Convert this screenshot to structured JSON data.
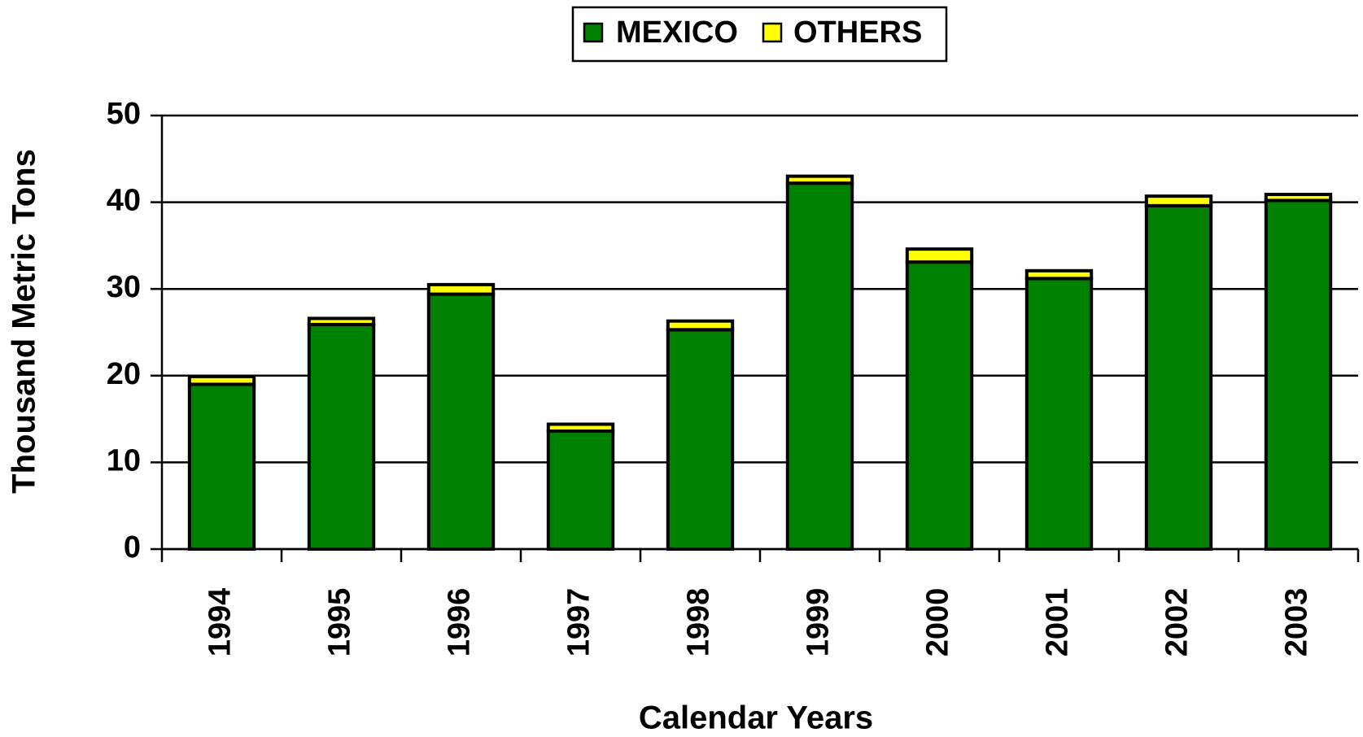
{
  "chart_data": {
    "type": "stacked_bar",
    "xlabel": "Calendar Years",
    "ylabel": "Thousand Metric Tons",
    "categories": [
      "1994",
      "1995",
      "1996",
      "1997",
      "1998",
      "1999",
      "2000",
      "2001",
      "2002",
      "2003"
    ],
    "series": [
      {
        "name": "MEXICO",
        "color": "#008000",
        "values": [
          19.0,
          25.9,
          29.4,
          13.6,
          25.3,
          42.2,
          33.1,
          31.2,
          39.6,
          40.2
        ]
      },
      {
        "name": "OTHERS",
        "color": "#ffff00",
        "values": [
          0.9,
          0.7,
          1.1,
          0.8,
          1.0,
          0.8,
          1.5,
          0.9,
          1.1,
          0.7
        ]
      }
    ],
    "ylim": [
      0,
      50
    ],
    "yticks": [
      0,
      10,
      20,
      30,
      40,
      50
    ],
    "grid": true,
    "legend": "top"
  }
}
